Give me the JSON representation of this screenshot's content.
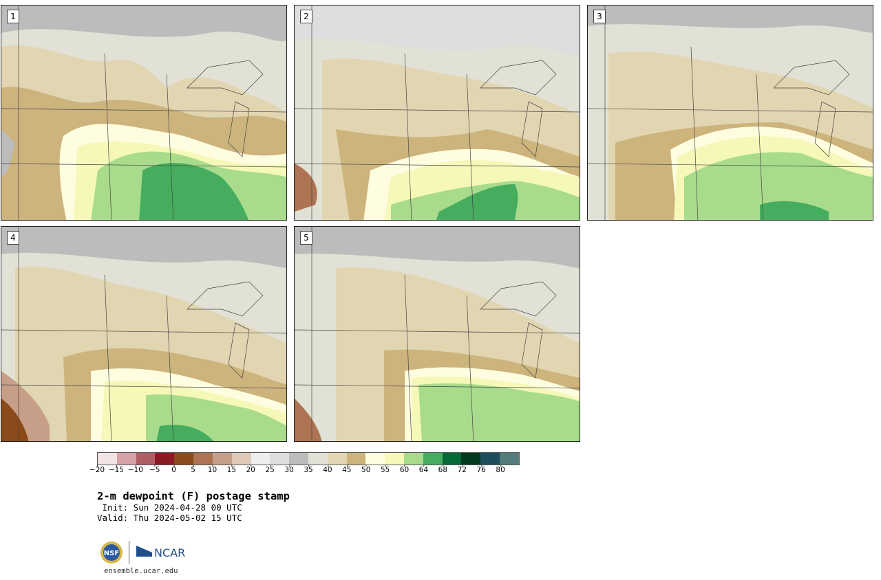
{
  "panels": [
    {
      "label": "1"
    },
    {
      "label": "2"
    },
    {
      "label": "3"
    },
    {
      "label": "4"
    },
    {
      "label": "5"
    }
  ],
  "colorbar": {
    "colors": [
      "#f2e4e4",
      "#d6a2a6",
      "#b05e66",
      "#8b1a24",
      "#8a4a1a",
      "#ad7352",
      "#c79f88",
      "#e0c8b8",
      "#eeeeee",
      "#dedede",
      "#bcbcbc",
      "#e1e1d5",
      "#e2d5b1",
      "#ccb47c",
      "#fffde0",
      "#f5f8b8",
      "#a8dc8c",
      "#46ad5e",
      "#066a36",
      "#043a20",
      "#1e4e5c",
      "#547c7c"
    ],
    "ticks": [
      "−20",
      "−15",
      "−10",
      "−5",
      "0",
      "5",
      "10",
      "15",
      "20",
      "25",
      "30",
      "35",
      "40",
      "45",
      "50",
      "55",
      "60",
      "64",
      "68",
      "72",
      "76",
      "80"
    ]
  },
  "title": "2-m dewpoint (F) postage stamp",
  "init": " Init: Sun 2024-04-28 00 UTC",
  "valid": "Valid: Thu 2024-05-02 15 UTC",
  "logos": {
    "nsf": "NSF",
    "ncar": "NCAR"
  },
  "url": "ensemble.ucar.edu"
}
